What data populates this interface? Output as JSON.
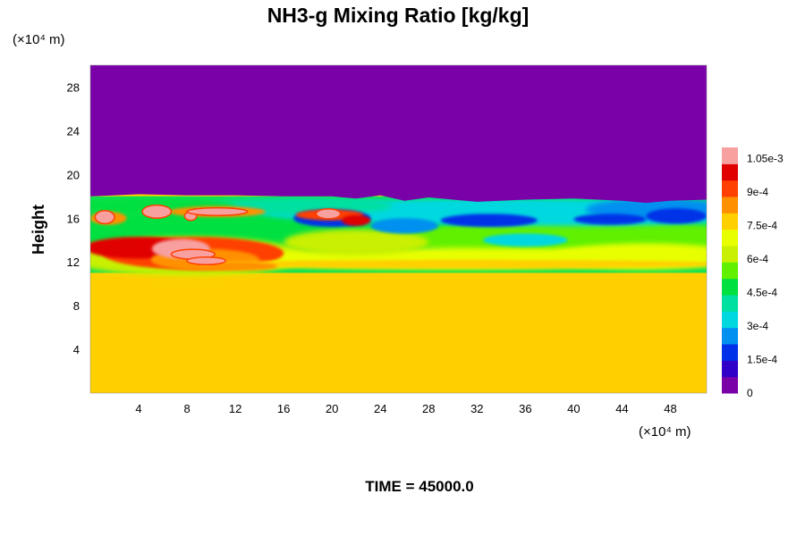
{
  "chart_data": {
    "type": "heatmap",
    "title": "NH3-g Mixing Ratio [kg/kg]",
    "xlabel": "",
    "ylabel": "Height",
    "x_unit": "(×10⁴ m)",
    "y_unit": "(×10⁴ m)",
    "xlim": [
      0,
      51
    ],
    "ylim": [
      0,
      30
    ],
    "x_ticks": [
      "4",
      "8",
      "12",
      "16",
      "20",
      "24",
      "28",
      "32",
      "36",
      "40",
      "44",
      "48"
    ],
    "x_tick_values": [
      4,
      8,
      12,
      16,
      20,
      24,
      28,
      32,
      36,
      40,
      44,
      48
    ],
    "y_ticks": [
      "4",
      "8",
      "12",
      "16",
      "20",
      "24",
      "28"
    ],
    "y_tick_values": [
      4,
      8,
      12,
      16,
      20,
      24,
      28
    ],
    "grid": false,
    "colorbar": {
      "min": 0,
      "max": 0.0011,
      "labels": [
        "0",
        "1.5e-4",
        "3e-4",
        "4.5e-4",
        "6e-4",
        "7.5e-4",
        "9e-4",
        "1.05e-3"
      ],
      "label_values": [
        0,
        0.00015,
        0.0003,
        0.00045,
        0.0006,
        0.00075,
        0.0009,
        0.00105
      ],
      "colors": [
        "#7a00a8",
        "#3000c8",
        "#0030e8",
        "#0090f0",
        "#00d8e0",
        "#00e0a0",
        "#00e040",
        "#60f000",
        "#c8f000",
        "#e8ff00",
        "#ffd000",
        "#ff9000",
        "#ff4000",
        "#e00000",
        "#f8a0a0"
      ]
    },
    "regions": {
      "top_layer": {
        "value": 0,
        "y_from": 18,
        "y_to": 30
      },
      "bottom_layer": {
        "value": 0.00078,
        "y_from": 0,
        "y_to": 11
      },
      "mixing_layer": {
        "y_from": 11,
        "y_to": 18,
        "values": "0 – 0.0011"
      }
    }
  },
  "footer": {
    "time_label": "TIME = 45000.0"
  }
}
